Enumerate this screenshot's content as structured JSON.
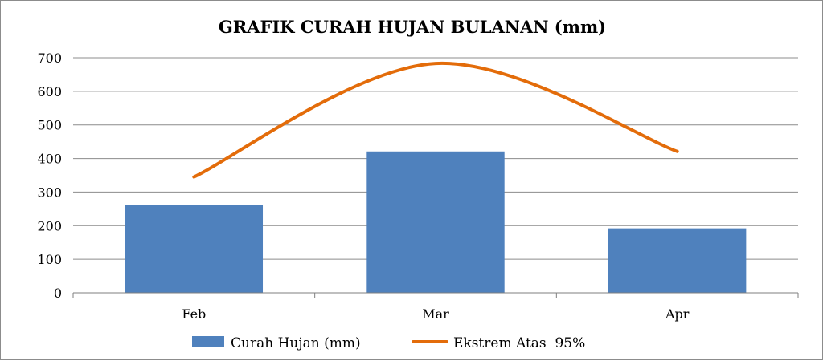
{
  "chart_data": {
    "type": "bar",
    "title": "GRAFIK CURAH HUJAN BULANAN (mm)",
    "categories": [
      "Feb",
      "Mar",
      "Apr"
    ],
    "series": [
      {
        "name": "Curah Hujan (mm)",
        "type": "bar",
        "color": "#4f81bd",
        "values": [
          262,
          421,
          192
        ]
      },
      {
        "name": "Ekstrem Atas  95%",
        "type": "line",
        "color": "#e36c0a",
        "values": [
          345,
          683,
          421
        ]
      }
    ],
    "ylim": [
      0,
      700
    ],
    "yticks": [
      0,
      100,
      200,
      300,
      400,
      500,
      600,
      700
    ],
    "grid": true,
    "legend": "bottom"
  }
}
